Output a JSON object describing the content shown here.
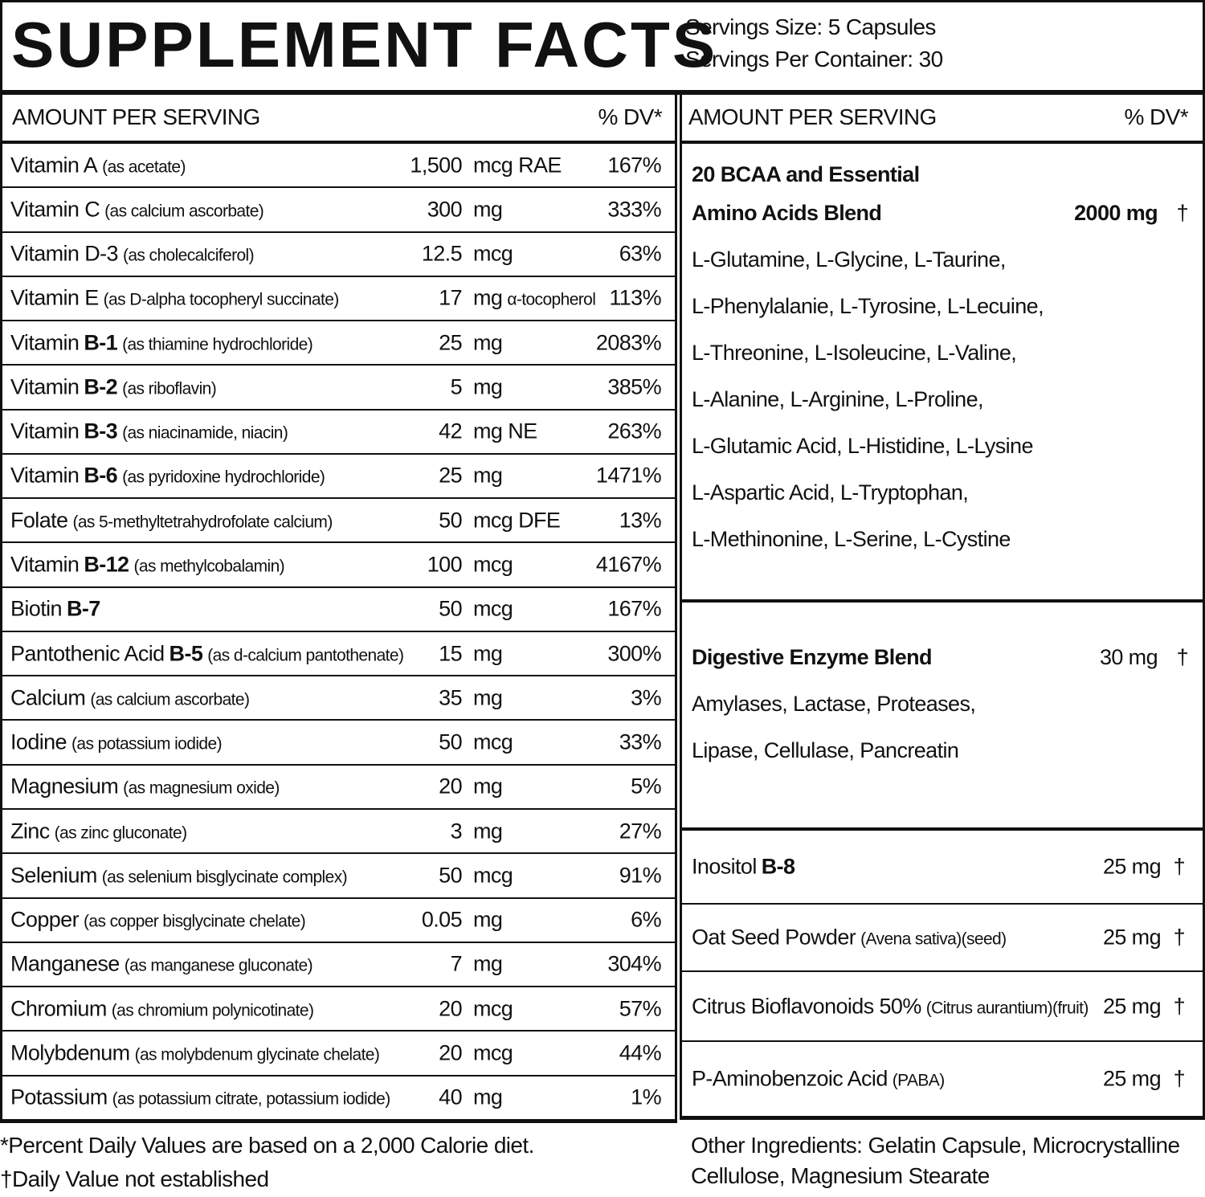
{
  "header": {
    "title": "SUPPLEMENT FACTS",
    "serving_size": "Servings Size: 5 Capsules",
    "servings_per_container": "Servings Per Container: 30"
  },
  "left_table": {
    "columns": [
      "AMOUNT PER SERVING",
      "% DV*"
    ],
    "rows": [
      {
        "name": "Vitamin A",
        "note": "(as acetate)",
        "amount": "1,500",
        "unit": "mcg RAE",
        "dv": "167%"
      },
      {
        "name": "Vitamin C",
        "note": "(as calcium ascorbate)",
        "amount": "300",
        "unit": "mg",
        "dv": "333%"
      },
      {
        "name": "Vitamin D-3",
        "note": "(as cholecalciferol)",
        "amount": "12.5",
        "unit": "mcg",
        "dv": "63%"
      },
      {
        "name": "Vitamin E",
        "note": "(as D-alpha tocopheryl succinate)",
        "amount": "17",
        "unit": "mg",
        "unit_note": "α-tocopherol",
        "dv": "113%"
      },
      {
        "name": "Vitamin",
        "bold": "B-1",
        "note": "(as thiamine hydrochloride)",
        "amount": "25",
        "unit": "mg",
        "dv": "2083%"
      },
      {
        "name": "Vitamin",
        "bold": "B-2",
        "note": "(as riboflavin)",
        "amount": "5",
        "unit": "mg",
        "dv": "385%"
      },
      {
        "name": "Vitamin",
        "bold": "B-3",
        "note": "(as niacinamide, niacin)",
        "amount": "42",
        "unit": "mg NE",
        "dv": "263%"
      },
      {
        "name": "Vitamin",
        "bold": "B-6",
        "note": "(as pyridoxine hydrochloride)",
        "amount": "25",
        "unit": "mg",
        "dv": "1471%"
      },
      {
        "name": "Folate",
        "note": "(as 5-methyltetrahydrofolate calcium)",
        "amount": "50",
        "unit": "mcg DFE",
        "dv": "13%"
      },
      {
        "name": "Vitamin",
        "bold": "B-12",
        "note": "(as methylcobalamin)",
        "amount": "100",
        "unit": "mcg",
        "dv": "4167%"
      },
      {
        "name": "Biotin",
        "bold": "B-7",
        "amount": "50",
        "unit": "mcg",
        "dv": "167%"
      },
      {
        "name": "Pantothenic Acid",
        "bold": "B-5",
        "note": "(as d-calcium pantothenate)",
        "amount": "15",
        "unit": "mg",
        "dv": "300%"
      },
      {
        "name": "Calcium",
        "note": "(as calcium ascorbate)",
        "amount": "35",
        "unit": "mg",
        "dv": "3%"
      },
      {
        "name": "Iodine",
        "note": "(as potassium iodide)",
        "amount": "50",
        "unit": "mcg",
        "dv": "33%"
      },
      {
        "name": "Magnesium",
        "note": "(as magnesium oxide)",
        "amount": "20",
        "unit": "mg",
        "dv": "5%"
      },
      {
        "name": "Zinc",
        "note": "(as zinc gluconate)",
        "amount": "3",
        "unit": "mg",
        "dv": "27%"
      },
      {
        "name": "Selenium",
        "note": "(as selenium bisglycinate complex)",
        "amount": "50",
        "unit": "mcg",
        "dv": "91%"
      },
      {
        "name": "Copper",
        "note": "(as copper bisglycinate chelate)",
        "amount": "0.05",
        "unit": "mg",
        "dv": "6%"
      },
      {
        "name": "Manganese",
        "note": "(as manganese gluconate)",
        "amount": "7",
        "unit": "mg",
        "dv": "304%"
      },
      {
        "name": "Chromium",
        "note": "(as chromium polynicotinate)",
        "amount": "20",
        "unit": "mcg",
        "dv": "57%"
      },
      {
        "name": "Molybdenum",
        "note": "(as molybdenum glycinate chelate)",
        "amount": "20",
        "unit": "mcg",
        "dv": "44%"
      },
      {
        "name": "Potassium",
        "note": "(as potassium citrate, potassium iodide)",
        "amount": "40",
        "unit": "mg",
        "dv": "1%"
      }
    ]
  },
  "right_table": {
    "columns": [
      "AMOUNT PER SERVING",
      "% DV*"
    ],
    "blends": [
      {
        "title": [
          "20 BCAA and Essential",
          "Amino Acids Blend"
        ],
        "amount": "2000 mg",
        "dv": "†",
        "ingredients": [
          "L-Glutamine, L-Glycine, L-Taurine,",
          "L-Phenylalanie, L-Tyrosine, L-Lecuine,",
          "L-Threonine, L-Isoleucine, L-Valine,",
          "L-Alanine, L-Arginine, L-Proline,",
          "L-Glutamic Acid, L-Histidine, L-Lysine",
          "L-Aspartic Acid, L-Tryptophan,",
          "L-Methinonine, L-Serine, L-Cystine"
        ]
      },
      {
        "title": [
          "Digestive Enzyme Blend"
        ],
        "amount": "30 mg",
        "dv": "†",
        "ingredients": [
          "Amylases, Lactase, Proteases,",
          "Lipase, Cellulase, Pancreatin"
        ]
      }
    ],
    "rows": [
      {
        "name": "Inositol",
        "bold": "B-8",
        "amount": "25 mg",
        "dv": "†"
      },
      {
        "name": "Oat Seed Powder",
        "note": "(Avena sativa)(seed)",
        "amount": "25 mg",
        "dv": "†"
      },
      {
        "name": "Citrus Bioflavonoids 50%",
        "note": "(Citrus aurantium)(fruit)",
        "amount": "25 mg",
        "dv": "†"
      },
      {
        "name": "P-Aminobenzoic Acid",
        "note": "(PABA)",
        "amount": "25 mg",
        "dv": "†"
      }
    ]
  },
  "footer": {
    "notes": [
      "*Percent Daily Values are based on a 2,000 Calorie diet.",
      "†Daily Value not established"
    ],
    "other_ingredients": [
      "Other Ingredients: Gelatin Capsule, Microcrystalline",
      "Cellulose, Magnesium Stearate"
    ]
  }
}
